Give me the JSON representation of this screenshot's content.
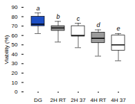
{
  "chart_data": {
    "type": "box",
    "categories": [
      "DG",
      "2H RT",
      "2H 37",
      "4H RT",
      "4H 37"
    ],
    "box_stats": [
      {
        "whislo": 62,
        "q1": 70,
        "med": 72,
        "q3": 80,
        "whishi": 84
      },
      {
        "whislo": 53,
        "q1": 65,
        "med": 68,
        "q3": 70,
        "whishi": 75
      },
      {
        "whislo": 47,
        "q1": 59,
        "med": 60,
        "q3": 70,
        "whishi": 73
      },
      {
        "whislo": 38,
        "q1": 52,
        "med": 57,
        "q3": 63,
        "whishi": 66
      },
      {
        "whislo": 33,
        "q1": 44,
        "med": 50,
        "q3": 60,
        "whishi": 62
      }
    ],
    "colors": [
      "#1d4fc4",
      "#9b9b9b",
      "#ffffff",
      "#9b9b9b",
      "#ffffff"
    ],
    "annotations": [
      "a",
      "b",
      "c",
      "d",
      "e"
    ],
    "ylabel": "Viability (%)",
    "ylim": [
      0,
      90
    ],
    "yticks": [
      0,
      10,
      20,
      30,
      40,
      50,
      60,
      70,
      80,
      90
    ],
    "grid": false
  }
}
